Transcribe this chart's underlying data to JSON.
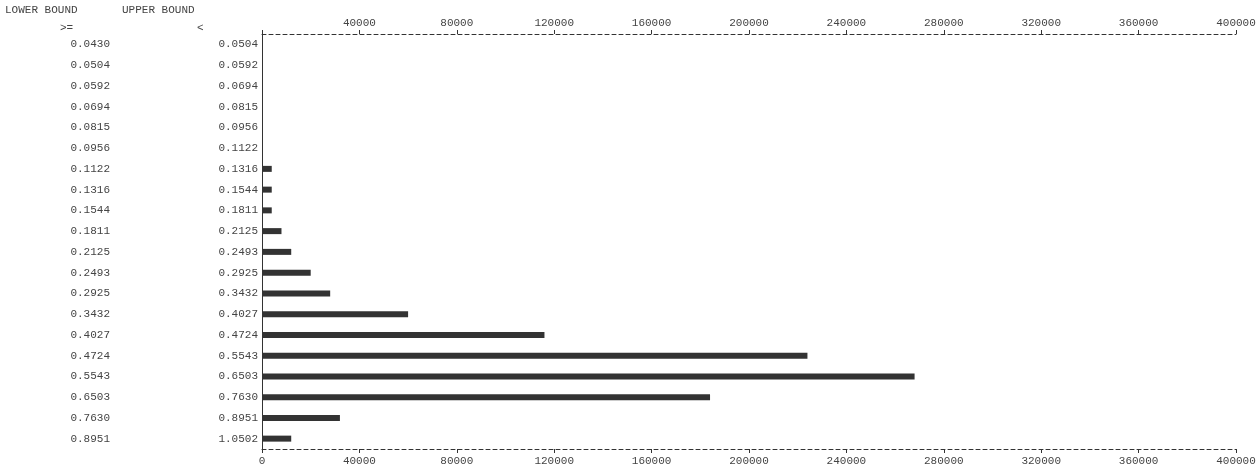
{
  "chart_data": {
    "type": "bar",
    "orientation": "horizontal",
    "categories": [
      "0.0430",
      "0.0504",
      "0.0592",
      "0.0694",
      "0.0815",
      "0.0956",
      "0.1122",
      "0.1316",
      "0.1544",
      "0.1811",
      "0.2125",
      "0.2493",
      "0.2925",
      "0.3432",
      "0.4027",
      "0.4724",
      "0.5543",
      "0.6503",
      "0.7630",
      "0.8951"
    ],
    "y2_categories": [
      "0.0504",
      "0.0592",
      "0.0694",
      "0.0815",
      "0.0956",
      "0.1122",
      "0.1316",
      "0.1544",
      "0.1811",
      "0.2125",
      "0.2493",
      "0.2925",
      "0.3432",
      "0.4027",
      "0.4724",
      "0.5543",
      "0.6503",
      "0.7630",
      "0.8951",
      "1.0502"
    ],
    "values": [
      0,
      0,
      0,
      0,
      0,
      0,
      4000,
      4000,
      4000,
      8000,
      12000,
      20000,
      28000,
      60000,
      116000,
      224000,
      268000,
      184000,
      32000,
      12000
    ],
    "color": "#333333",
    "xlim": [
      0,
      400000
    ],
    "xticks": [
      0,
      40000,
      80000,
      120000,
      160000,
      200000,
      240000,
      280000,
      320000,
      360000,
      400000
    ],
    "x2lim": [
      0,
      400000
    ],
    "x2ticks": [
      {
        "value": 0,
        "label": null
      },
      40000,
      80000,
      120000,
      160000,
      200000,
      240000,
      280000,
      320000,
      360000,
      400000
    ],
    "annotations": [
      "LOWER BOUND",
      ">=",
      "UPPER BOUND",
      "<"
    ],
    "grid": false
  }
}
